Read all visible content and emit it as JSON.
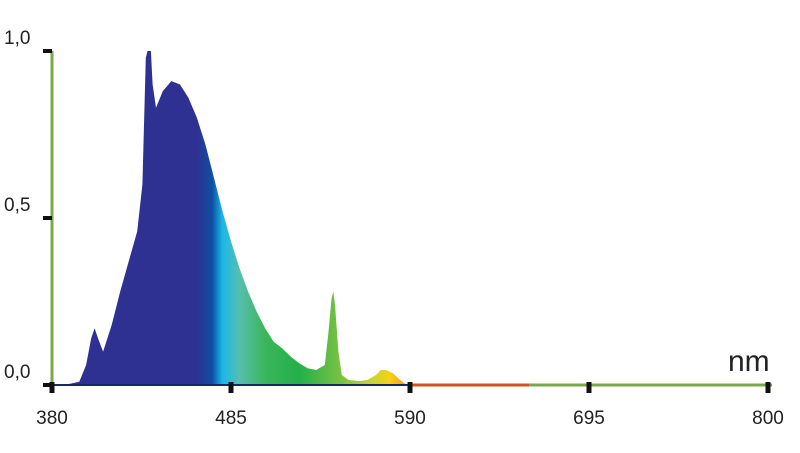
{
  "chart_data": {
    "type": "area",
    "title": "",
    "xlabel": "nm",
    "ylabel": "",
    "xlim": [
      380,
      800
    ],
    "ylim": [
      0,
      1.0
    ],
    "x_ticks": [
      380,
      485,
      590,
      695,
      800
    ],
    "x_tick_labels": [
      "380",
      "485",
      "590",
      "695",
      "800"
    ],
    "y_ticks": [
      0,
      0.5,
      1.0
    ],
    "y_tick_labels": [
      "0,0",
      "0,5",
      "1,0"
    ],
    "grid": false,
    "series": [
      {
        "x": [
          380,
          390,
          396,
          400,
          403,
          405,
          407,
          410,
          415,
          420,
          425,
          430,
          433,
          435,
          436,
          438,
          439,
          441,
          445,
          450,
          455,
          460,
          465,
          470,
          475,
          480,
          485,
          490,
          495,
          500,
          505,
          510,
          515,
          520,
          525,
          530,
          535,
          540,
          542,
          544,
          545,
          546,
          548,
          550,
          554,
          560,
          565,
          570,
          573,
          576,
          580,
          583,
          586,
          588
        ],
        "y": [
          0.0,
          0.003,
          0.01,
          0.06,
          0.14,
          0.17,
          0.14,
          0.1,
          0.18,
          0.28,
          0.37,
          0.46,
          0.6,
          0.98,
          1.0,
          1.0,
          0.9,
          0.83,
          0.88,
          0.91,
          0.9,
          0.86,
          0.8,
          0.72,
          0.62,
          0.52,
          0.43,
          0.35,
          0.28,
          0.22,
          0.17,
          0.13,
          0.11,
          0.085,
          0.065,
          0.05,
          0.045,
          0.06,
          0.15,
          0.26,
          0.28,
          0.24,
          0.1,
          0.03,
          0.015,
          0.012,
          0.015,
          0.03,
          0.045,
          0.045,
          0.035,
          0.02,
          0.008,
          0.0
        ]
      }
    ],
    "fill_gradient": [
      {
        "nm": 380,
        "color": "#2e3192"
      },
      {
        "nm": 465,
        "color": "#2e3192"
      },
      {
        "nm": 474,
        "color": "#0d4fa3"
      },
      {
        "nm": 480,
        "color": "#1ab8e8"
      },
      {
        "nm": 490,
        "color": "#56bfae"
      },
      {
        "nm": 505,
        "color": "#3bb55a"
      },
      {
        "nm": 525,
        "color": "#22b04a"
      },
      {
        "nm": 550,
        "color": "#7dc242"
      },
      {
        "nm": 568,
        "color": "#c8d530"
      },
      {
        "nm": 578,
        "color": "#f7d117"
      },
      {
        "nm": 588,
        "color": "#f39c1e"
      }
    ],
    "axis_colors": {
      "y_axis": "#7aa84a",
      "x_axis_left": "#1a2a5a",
      "x_axis_red": "#d2541e",
      "x_axis_right": "#7aa84a",
      "ticks": "#111111"
    },
    "x_axis_red_range": [
      590,
      660
    ]
  }
}
